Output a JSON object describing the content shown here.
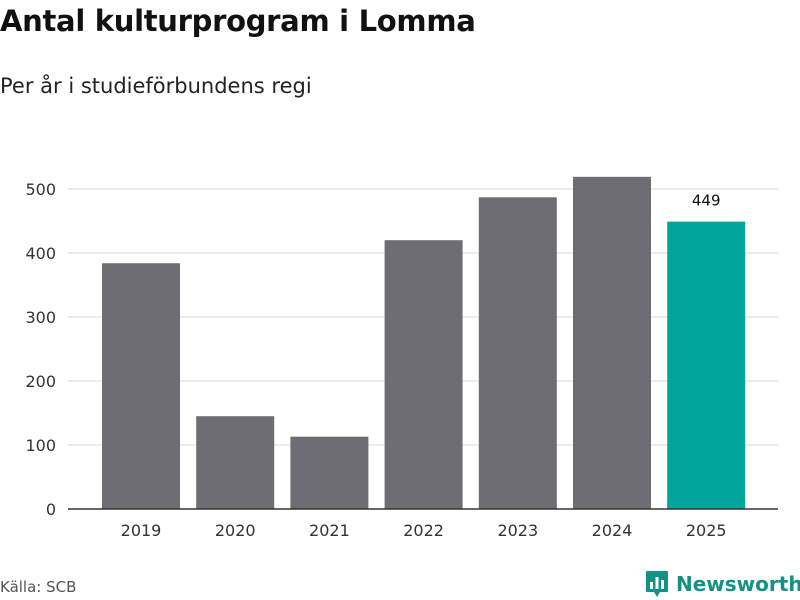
{
  "header": {
    "title": "Antal kulturprogram i Lomma",
    "subtitle": "Per år i studieförbundens regi"
  },
  "footer": {
    "source": "Källa: SCB",
    "brand_name": "Newsworthy",
    "brand_icon": "bar-chart-speech-icon"
  },
  "colors": {
    "bar_default": "#6e6d73",
    "bar_highlight": "#00a699",
    "brand": "#149184",
    "grid": "#d9d9d9"
  },
  "chart_data": {
    "type": "bar",
    "title": "Antal kulturprogram i Lomma",
    "subtitle": "Per år i studieförbundens regi",
    "categories": [
      "2019",
      "2020",
      "2021",
      "2022",
      "2023",
      "2024",
      "2025"
    ],
    "values": [
      384,
      145,
      113,
      420,
      487,
      519,
      449
    ],
    "highlight_index": 6,
    "data_labels": [
      {
        "index": 6,
        "text": "449"
      }
    ],
    "yticks": [
      0,
      100,
      200,
      300,
      400,
      500
    ],
    "ylim": [
      0,
      530
    ],
    "grid": true,
    "xlabel": "",
    "ylabel": ""
  }
}
